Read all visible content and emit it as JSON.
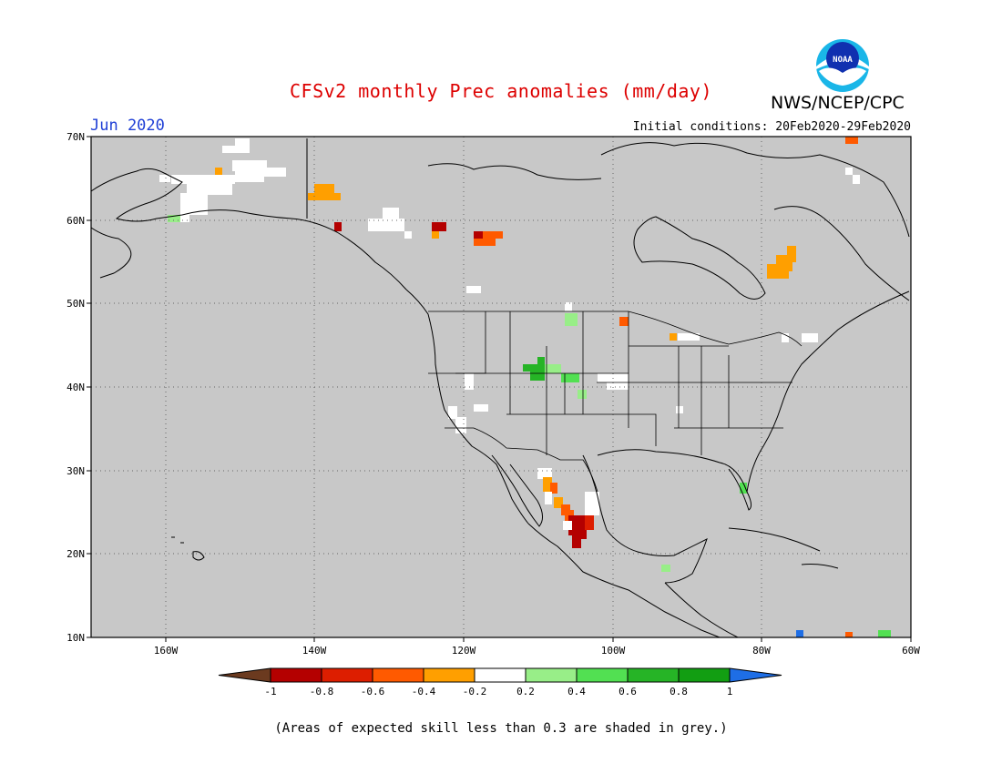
{
  "header": {
    "title": "CFSv2 monthly Prec anomalies (mm/day)",
    "agency": "NWS/NCEP/CPC",
    "logo_text": "NOAA",
    "month": "Jun 2020",
    "initial_conditions": "Initial conditions: 20Feb2020-29Feb2020"
  },
  "map": {
    "lon_range": [
      -170,
      -60
    ],
    "lat_range": [
      10,
      70
    ],
    "lat_labels": [
      "70N",
      "60N",
      "50N",
      "40N",
      "30N",
      "20N",
      "10N"
    ],
    "lon_labels": [
      "160W",
      "140W",
      "120W",
      "100W",
      "80W",
      "60W"
    ],
    "background_color": "#c8c8c8",
    "grid": "dotted"
  },
  "colorbar": {
    "tick_labels": [
      "-1",
      "-0.8",
      "-0.6",
      "-0.4",
      "-0.2",
      "0.2",
      "0.4",
      "0.6",
      "0.8",
      "1"
    ],
    "colors": [
      "#6b3a1f",
      "#b40000",
      "#dd1e00",
      "#ff5a00",
      "#ff9f00",
      "#ffffff",
      "#98ee88",
      "#52e052",
      "#26b426",
      "#129e12",
      "#1e6ee6"
    ]
  },
  "footnote": "(Areas of expected skill less than 0.3 are shaded in grey.)"
}
